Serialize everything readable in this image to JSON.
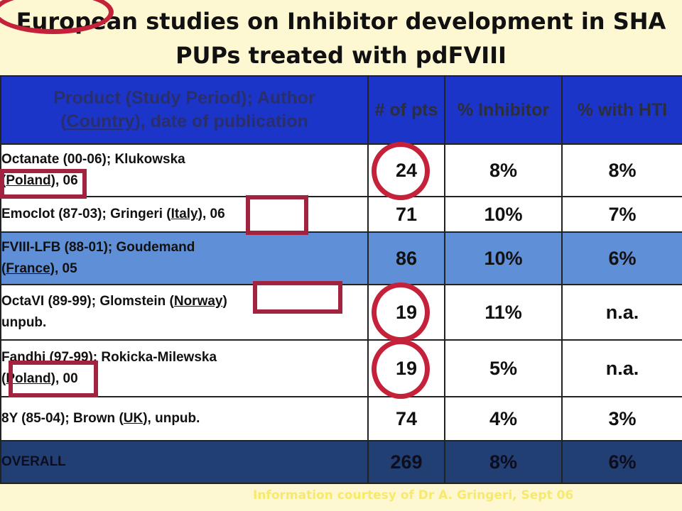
{
  "title": {
    "line1": "European studies on Inhibitor development in SHA",
    "line2": "PUPs treated with pdFVIII"
  },
  "table": {
    "headers": {
      "product_part1": "Product (Study Period); Author",
      "product_open": "(",
      "product_country": "Country",
      "product_part2": "), date of publication",
      "pts": "# of pts",
      "inhibitor": "% Inhibitor",
      "hti": "% with HTI"
    },
    "rows": [
      {
        "product": "Octanate (00-06);",
        "author": " Klukowska",
        "pre": "(",
        "country": "Poland",
        "post": "), 06",
        "pts": "24",
        "inhibitor": "8%",
        "hti": "8%"
      },
      {
        "product": "Emoclot (87-03);",
        "author": " Gringeri ",
        "pre": "(",
        "country": "Italy",
        "post": "), 06",
        "pts": "71",
        "inhibitor": "10%",
        "hti": "7%"
      },
      {
        "product": "FVIII-LFB (88-01);",
        "author": " Goudemand",
        "pre": "(",
        "country": "France",
        "post": "), 05",
        "pts": "86",
        "inhibitor": "10%",
        "hti": "6%"
      },
      {
        "product": "OctaVI (89-99);",
        "author": " Glomstein ",
        "pre": "(",
        "country": "Norway",
        "post": ")",
        "extra": "unpub.",
        "pts": "19",
        "inhibitor": "11%",
        "hti": "n.a."
      },
      {
        "product": "Fandhi (97-99);",
        "author": " Rokicka-Milewska",
        "pre": "(",
        "country": "Poland",
        "post": "), 00",
        "pts": "19",
        "inhibitor": "5%",
        "hti": "n.a."
      },
      {
        "product": "8Y (85-04);",
        "author": " Brown ",
        "pre": "(",
        "country": "UK",
        "post": "), unpub.",
        "pts": "74",
        "inhibitor": "4%",
        "hti": "3%"
      }
    ],
    "overall": {
      "label": "OVERALL",
      "pts": "269",
      "inhibitor": "8%",
      "hti": "6%"
    }
  },
  "footer": "Information courtesy of Dr A. Gringeri, Sept 06",
  "colors": {
    "header_bg": "#1a35c8",
    "highlight_row": "#5f8fd7",
    "overall_row": "#223f73",
    "annotation_circle": "#c4223a",
    "annotation_box": "#a1233f",
    "footer_text": "#f7e96b",
    "background": "#fdf8d2"
  }
}
